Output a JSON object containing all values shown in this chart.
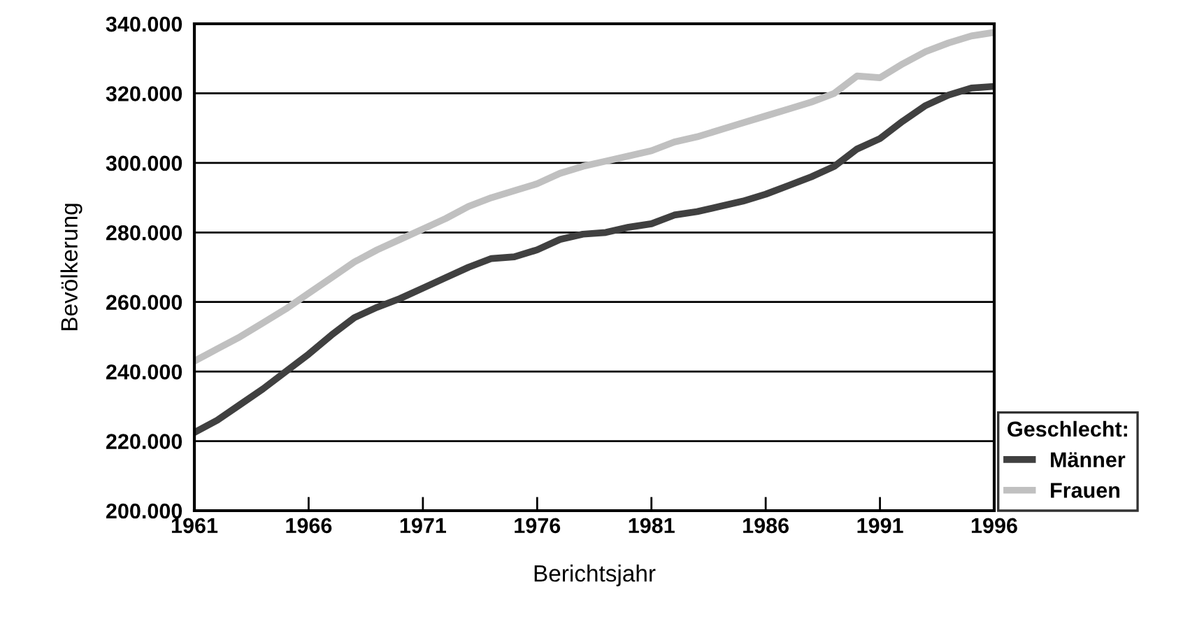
{
  "chart_data": {
    "type": "line",
    "xlabel": "Berichtsjahr",
    "ylabel": "Bevölkerung",
    "legend_title": "Geschlecht:",
    "x": [
      1961,
      1962,
      1963,
      1964,
      1965,
      1966,
      1967,
      1968,
      1969,
      1970,
      1971,
      1972,
      1973,
      1974,
      1975,
      1976,
      1977,
      1978,
      1979,
      1980,
      1981,
      1982,
      1983,
      1984,
      1985,
      1986,
      1987,
      1988,
      1989,
      1990,
      1991,
      1992,
      1993,
      1994,
      1995,
      1996
    ],
    "series": [
      {
        "name": "Männer",
        "color": "#404040",
        "values": [
          222500,
          226000,
          230500,
          235000,
          240000,
          245000,
          250500,
          255500,
          258500,
          261000,
          264000,
          267000,
          270000,
          272500,
          273000,
          275000,
          278000,
          279500,
          280000,
          281500,
          282500,
          285000,
          286000,
          287500,
          289000,
          291000,
          293500,
          296000,
          299000,
          304000,
          307000,
          312000,
          316500,
          319500,
          321500,
          322000
        ]
      },
      {
        "name": "Frauen",
        "color": "#c0c0c0",
        "values": [
          243000,
          246500,
          250000,
          254000,
          258000,
          262500,
          267000,
          271500,
          275000,
          278000,
          281000,
          284000,
          287500,
          290000,
          292000,
          294000,
          297000,
          299000,
          300500,
          302000,
          303500,
          306000,
          307500,
          309500,
          311500,
          313500,
          315500,
          317500,
          320000,
          325000,
          324500,
          328500,
          332000,
          334500,
          336500,
          337500
        ]
      }
    ],
    "xlim": [
      1961,
      1996
    ],
    "xticks": [
      1961,
      1966,
      1971,
      1976,
      1981,
      1986,
      1991,
      1996
    ],
    "ylim": [
      200000,
      340000
    ],
    "yticks": [
      {
        "value": 200000,
        "label": "200.000"
      },
      {
        "value": 220000,
        "label": "220.000"
      },
      {
        "value": 240000,
        "label": "240.000"
      },
      {
        "value": 260000,
        "label": "260.000"
      },
      {
        "value": 280000,
        "label": "280.000"
      },
      {
        "value": 300000,
        "label": "300.000"
      },
      {
        "value": 320000,
        "label": "320.000"
      },
      {
        "value": 340000,
        "label": "340.000"
      }
    ],
    "grid": "y",
    "legend": "bottom right",
    "marker": "none",
    "line_style": "solid"
  }
}
